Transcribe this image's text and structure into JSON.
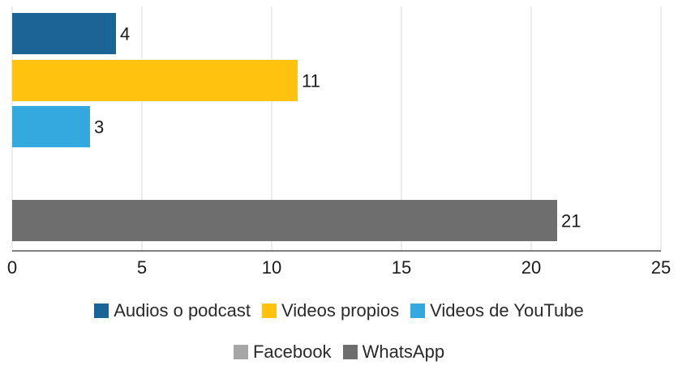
{
  "chart_data": {
    "type": "bar",
    "orientation": "horizontal",
    "xlim": [
      0,
      25
    ],
    "xticks": [
      "0",
      "5",
      "10",
      "15",
      "20",
      "25"
    ],
    "grid": true,
    "legend_position": "bottom",
    "series": [
      {
        "name": "Audios o podcast",
        "value": 4,
        "label": "4",
        "color": "#1a6496"
      },
      {
        "name": "Videos propios",
        "value": 11,
        "label": "11",
        "color": "#ffc20e"
      },
      {
        "name": "Videos de YouTube",
        "value": 3,
        "label": "3",
        "color": "#34a9e0"
      },
      {
        "name": "Facebook",
        "value": 0,
        "label": "",
        "color": "#a6a6a6"
      },
      {
        "name": "WhatsApp",
        "value": 21,
        "label": "21",
        "color": "#6e6e6e"
      }
    ]
  }
}
